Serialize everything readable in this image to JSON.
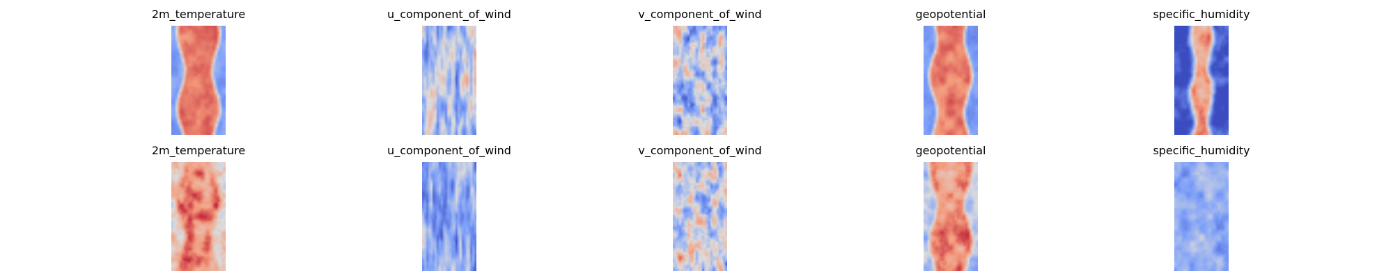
{
  "chart_data": {
    "type": "heatmap",
    "colormap": "coolwarm",
    "axes": "off",
    "rows": [
      {
        "panels": [
          {
            "title": "2m_temperature",
            "pattern": "band",
            "center": 0.82,
            "edge": 0.25,
            "noise": 0.12
          },
          {
            "title": "u_component_of_wind",
            "pattern": "streaks",
            "center": 0.42,
            "edge": 0.4,
            "noise": 0.45
          },
          {
            "title": "v_component_of_wind",
            "pattern": "eddies",
            "center": 0.45,
            "edge": 0.42,
            "noise": 0.45
          },
          {
            "title": "geopotential",
            "pattern": "band",
            "center": 0.8,
            "edge": 0.25,
            "noise": 0.12
          },
          {
            "title": "specific_humidity",
            "pattern": "humid",
            "center": 0.75,
            "edge": 0.05,
            "noise": 0.25
          }
        ]
      },
      {
        "panels": [
          {
            "title": "2m_temperature",
            "pattern": "band",
            "center": 0.78,
            "edge": 0.6,
            "noise": 0.3
          },
          {
            "title": "u_component_of_wind",
            "pattern": "streaks",
            "center": 0.35,
            "edge": 0.35,
            "noise": 0.35
          },
          {
            "title": "v_component_of_wind",
            "pattern": "eddies",
            "center": 0.5,
            "edge": 0.45,
            "noise": 0.45
          },
          {
            "title": "geopotential",
            "pattern": "band",
            "center": 0.78,
            "edge": 0.4,
            "noise": 0.25
          },
          {
            "title": "specific_humidity",
            "pattern": "humid",
            "center": 0.35,
            "edge": 0.3,
            "noise": 0.2
          }
        ]
      }
    ]
  }
}
